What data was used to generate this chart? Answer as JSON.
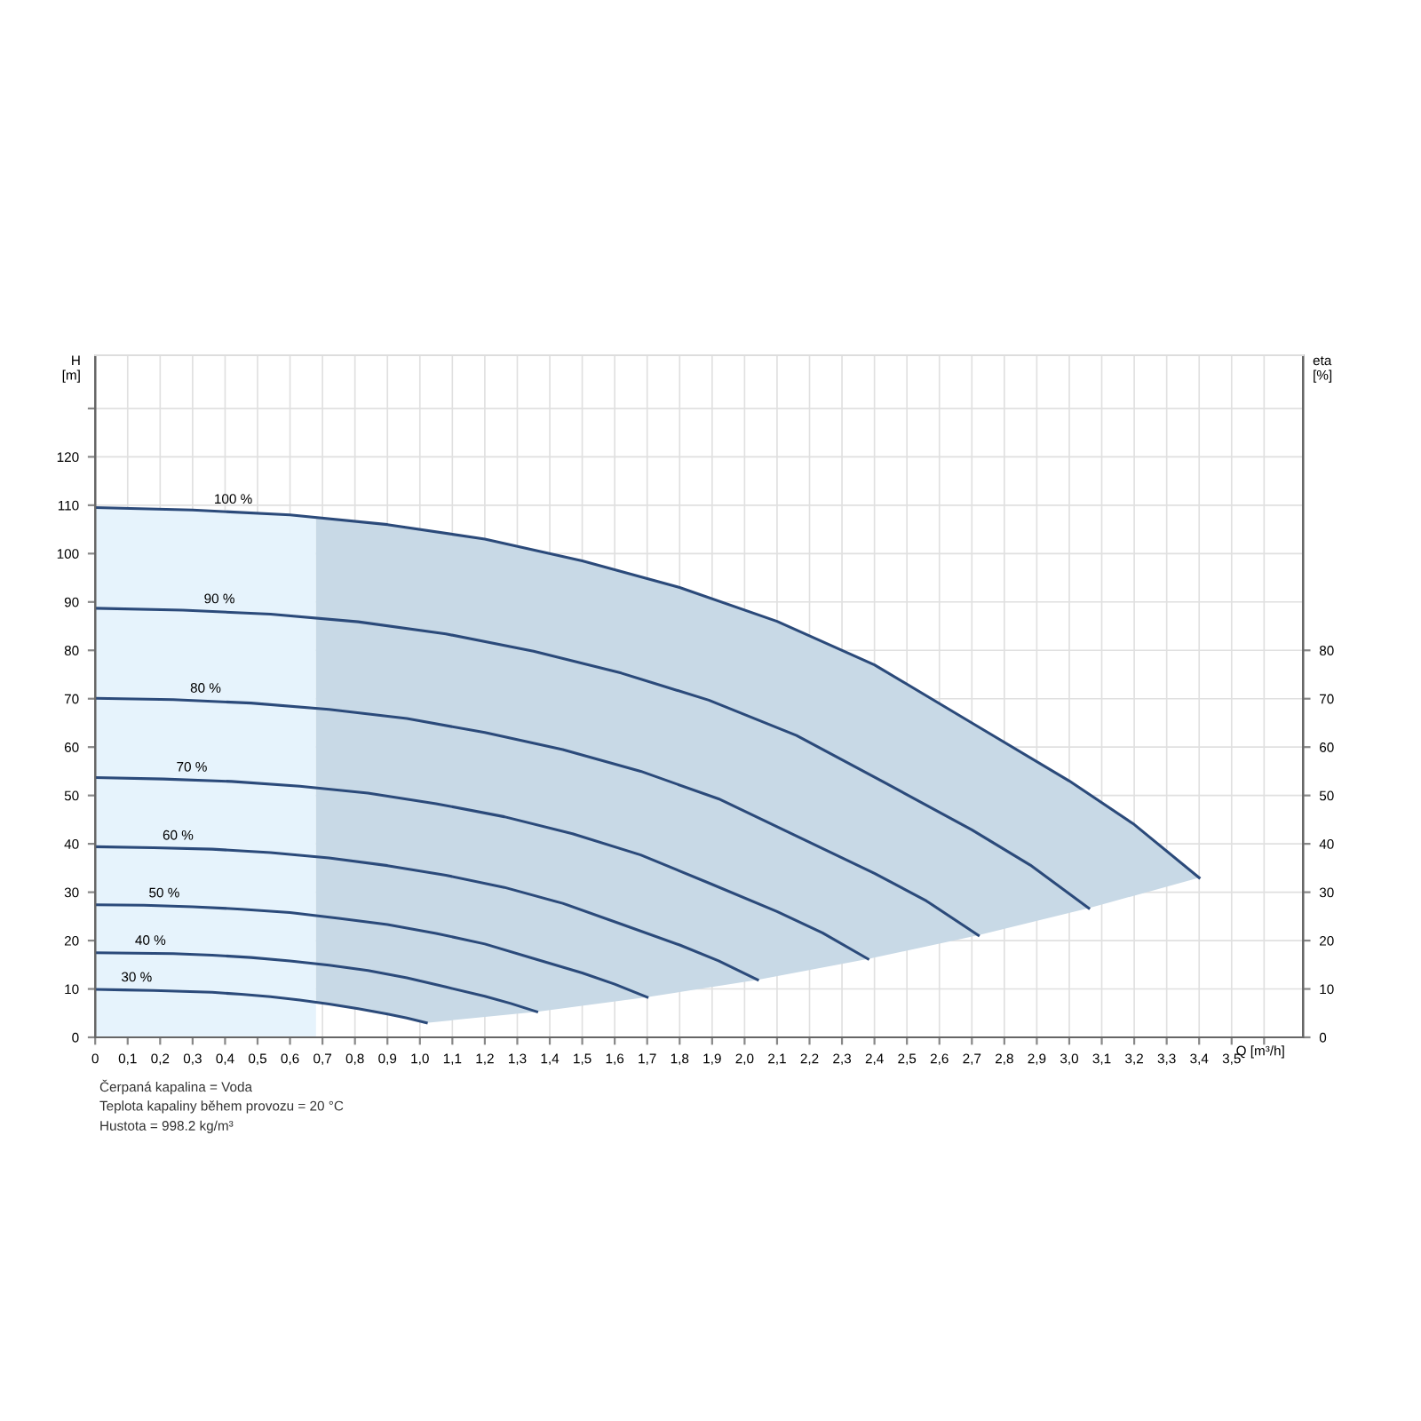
{
  "chart_data": {
    "type": "line",
    "xlabel": "Q [m³/h]",
    "ylabel": "H\n[m]",
    "y2label": "eta\n[%]",
    "xlim": [
      0,
      3.72
    ],
    "ylim": [
      0,
      141
    ],
    "y2lim": [
      0,
      141
    ],
    "xticks": [
      {
        "value": 0,
        "label": "0"
      },
      {
        "value": 0.1,
        "label": "0,1"
      },
      {
        "value": 0.2,
        "label": "0,2"
      },
      {
        "value": 0.3,
        "label": "0,3"
      },
      {
        "value": 0.4,
        "label": "0,4"
      },
      {
        "value": 0.5,
        "label": "0,5"
      },
      {
        "value": 0.6,
        "label": "0,6"
      },
      {
        "value": 0.7,
        "label": "0,7"
      },
      {
        "value": 0.8,
        "label": "0,8"
      },
      {
        "value": 0.9,
        "label": "0,9"
      },
      {
        "value": 1.0,
        "label": "1,0"
      },
      {
        "value": 1.1,
        "label": "1,1"
      },
      {
        "value": 1.2,
        "label": "1,2"
      },
      {
        "value": 1.3,
        "label": "1,3"
      },
      {
        "value": 1.4,
        "label": "1,4"
      },
      {
        "value": 1.5,
        "label": "1,5"
      },
      {
        "value": 1.6,
        "label": "1,6"
      },
      {
        "value": 1.7,
        "label": "1,7"
      },
      {
        "value": 1.8,
        "label": "1,8"
      },
      {
        "value": 1.9,
        "label": "1,9"
      },
      {
        "value": 2.0,
        "label": "2,0"
      },
      {
        "value": 2.1,
        "label": "2,1"
      },
      {
        "value": 2.2,
        "label": "2,2"
      },
      {
        "value": 2.3,
        "label": "2,3"
      },
      {
        "value": 2.4,
        "label": "2,4"
      },
      {
        "value": 2.5,
        "label": "2,5"
      },
      {
        "value": 2.6,
        "label": "2,6"
      },
      {
        "value": 2.7,
        "label": "2,7"
      },
      {
        "value": 2.8,
        "label": "2,8"
      },
      {
        "value": 2.9,
        "label": "2,9"
      },
      {
        "value": 3.0,
        "label": "3,0"
      },
      {
        "value": 3.1,
        "label": "3,1"
      },
      {
        "value": 3.2,
        "label": "3,2"
      },
      {
        "value": 3.3,
        "label": "3,3"
      },
      {
        "value": 3.4,
        "label": "3,4"
      },
      {
        "value": 3.5,
        "label": "3,5"
      },
      {
        "value": 3.6,
        "label": null
      }
    ],
    "yticks": [
      0,
      10,
      20,
      30,
      40,
      50,
      60,
      70,
      80,
      90,
      100,
      110,
      120,
      {
        "value": 130,
        "label": null
      }
    ],
    "y2ticks": [
      0,
      10,
      20,
      30,
      40,
      50,
      60,
      70,
      80
    ],
    "grid": true,
    "line_style": "solid",
    "bands": [
      {
        "axis": "x",
        "from": 0,
        "to": 0.68,
        "color": "#e6f3fc"
      }
    ],
    "series": [
      {
        "name": "100 %",
        "color": "#2b4a7a",
        "x": [
          0,
          0.3,
          0.6,
          0.9,
          1.2,
          1.5,
          1.8,
          2.1,
          2.4,
          2.7,
          3.0,
          3.2,
          3.4
        ],
        "values": [
          109.5,
          109,
          108,
          106,
          103,
          98.5,
          93,
          86,
          77,
          65,
          53,
          44,
          33
        ]
      },
      {
        "name": "90 %",
        "color": "#2b4a7a",
        "x": [
          0,
          0.27,
          0.54,
          0.81,
          1.08,
          1.35,
          1.62,
          1.89,
          2.16,
          2.43,
          2.7,
          2.88,
          3.06
        ],
        "values": [
          88.7,
          88.3,
          87.5,
          85.9,
          83.4,
          79.8,
          75.3,
          69.7,
          62.4,
          52.7,
          42.9,
          35.6,
          26.7
        ]
      },
      {
        "name": "80 %",
        "color": "#2b4a7a",
        "x": [
          0,
          0.24,
          0.48,
          0.72,
          0.96,
          1.2,
          1.44,
          1.68,
          1.92,
          2.16,
          2.4,
          2.56,
          2.72
        ],
        "values": [
          70.1,
          69.8,
          69.1,
          67.8,
          65.9,
          63.0,
          59.5,
          55.0,
          49.3,
          41.6,
          33.9,
          28.2,
          21.1
        ]
      },
      {
        "name": "70 %",
        "color": "#2b4a7a",
        "x": [
          0,
          0.21,
          0.42,
          0.63,
          0.84,
          1.05,
          1.26,
          1.47,
          1.68,
          1.89,
          2.1,
          2.24,
          2.38
        ],
        "values": [
          53.7,
          53.4,
          52.9,
          51.9,
          50.5,
          48.3,
          45.6,
          42.1,
          37.7,
          31.9,
          26.0,
          21.6,
          16.2
        ]
      },
      {
        "name": "60 %",
        "color": "#2b4a7a",
        "x": [
          0,
          0.18,
          0.36,
          0.54,
          0.72,
          0.9,
          1.08,
          1.26,
          1.44,
          1.62,
          1.8,
          1.92,
          2.04
        ],
        "values": [
          39.4,
          39.2,
          38.9,
          38.2,
          37.1,
          35.5,
          33.5,
          31.0,
          27.7,
          23.4,
          19.1,
          15.8,
          11.9
        ]
      },
      {
        "name": "50 %",
        "color": "#2b4a7a",
        "x": [
          0,
          0.15,
          0.3,
          0.45,
          0.6,
          0.75,
          0.9,
          1.05,
          1.2,
          1.35,
          1.5,
          1.6,
          1.7
        ],
        "values": [
          27.4,
          27.3,
          27.0,
          26.5,
          25.8,
          24.6,
          23.3,
          21.5,
          19.3,
          16.3,
          13.3,
          11.0,
          8.3
        ]
      },
      {
        "name": "40 %",
        "color": "#2b4a7a",
        "x": [
          0,
          0.12,
          0.24,
          0.36,
          0.48,
          0.6,
          0.72,
          0.84,
          0.96,
          1.08,
          1.2,
          1.28,
          1.36
        ],
        "values": [
          17.5,
          17.4,
          17.3,
          17.0,
          16.5,
          15.8,
          14.9,
          13.8,
          12.3,
          10.4,
          8.5,
          7.0,
          5.3
        ]
      },
      {
        "name": "30 %",
        "color": "#2b4a7a",
        "x": [
          0,
          0.09,
          0.18,
          0.27,
          0.36,
          0.45,
          0.54,
          0.63,
          0.72,
          0.81,
          0.9,
          0.96,
          1.02
        ],
        "values": [
          9.9,
          9.8,
          9.7,
          9.5,
          9.3,
          8.9,
          8.4,
          7.7,
          6.9,
          5.9,
          4.8,
          4.0,
          3.0
        ]
      }
    ],
    "annotations": [
      "Čerpaná kapalina = Voda",
      "Teplota kapaliny během provozu = 20 °C",
      "Hustota = 998.2 kg/m³"
    ]
  }
}
